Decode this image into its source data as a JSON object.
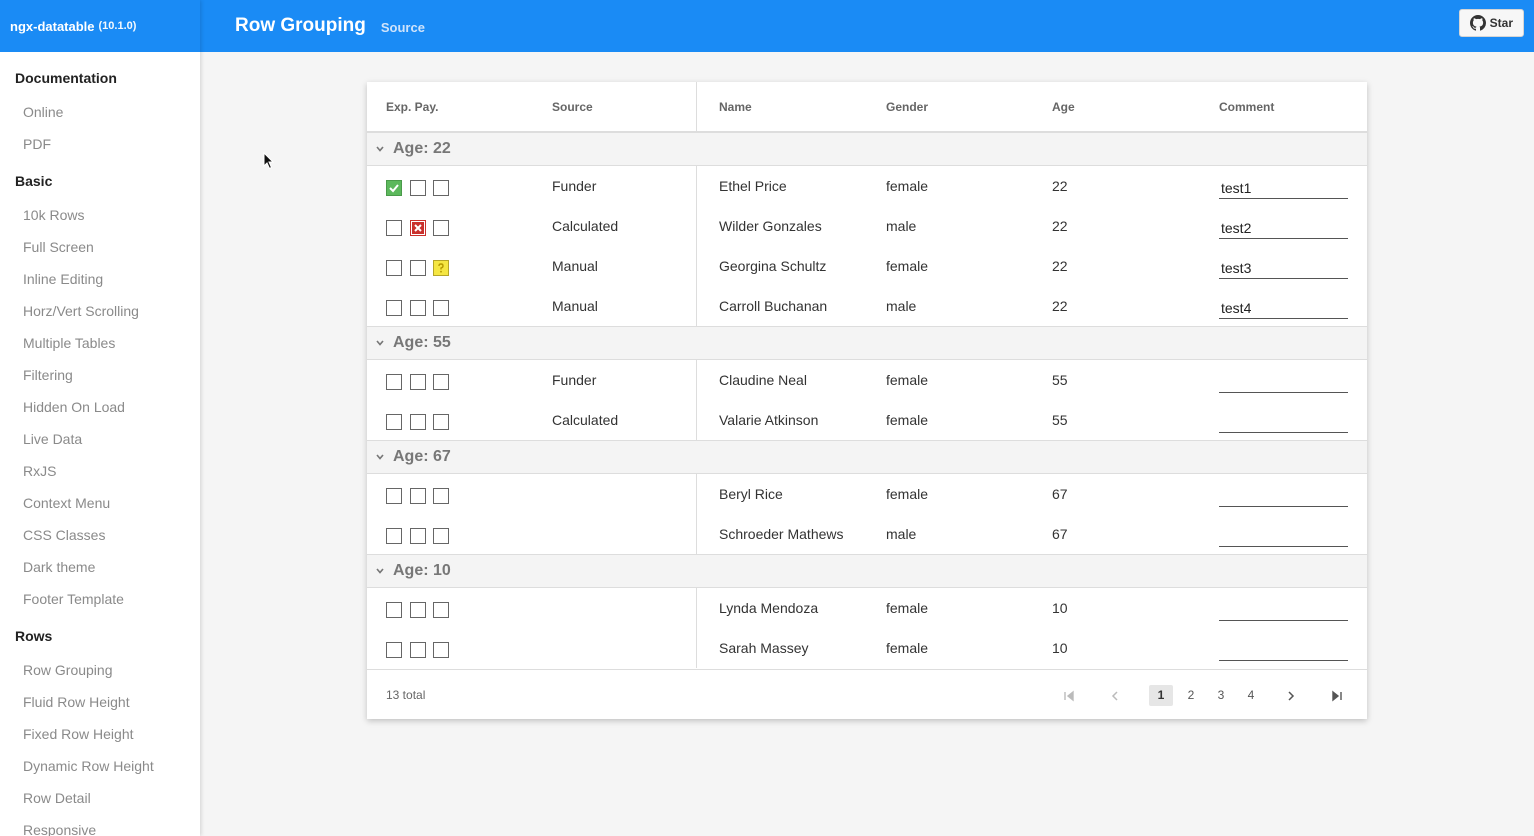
{
  "brand": {
    "name": "ngx-datatable",
    "version": "(10.1.0)"
  },
  "header": {
    "title": "Row Grouping",
    "source_label": "Source",
    "star_label": "Star"
  },
  "sidebar": {
    "sections": [
      {
        "title": "Documentation",
        "items": [
          "Online",
          "PDF"
        ]
      },
      {
        "title": "Basic",
        "items": [
          "10k Rows",
          "Full Screen",
          "Inline Editing",
          "Horz/Vert Scrolling",
          "Multiple Tables",
          "Filtering",
          "Hidden On Load",
          "Live Data",
          "RxJS",
          "Context Menu",
          "CSS Classes",
          "Dark theme",
          "Footer Template"
        ]
      },
      {
        "title": "Rows",
        "items": [
          "Row Grouping",
          "Fluid Row Height",
          "Fixed Row Height",
          "Dynamic Row Height",
          "Row Detail",
          "Responsive"
        ]
      }
    ]
  },
  "table": {
    "columns": [
      "Exp. Pay.",
      "Source",
      "Name",
      "Gender",
      "Age",
      "Comment"
    ],
    "groups": [
      {
        "title": "Age: 22",
        "rows": [
          {
            "status": "green",
            "source": "Funder",
            "name": "Ethel Price",
            "gender": "female",
            "age": "22",
            "comment": "test1"
          },
          {
            "status": "red",
            "source": "Calculated",
            "name": "Wilder Gonzales",
            "gender": "male",
            "age": "22",
            "comment": "test2"
          },
          {
            "status": "yellow",
            "source": "Manual",
            "name": "Georgina Schultz",
            "gender": "female",
            "age": "22",
            "comment": "test3"
          },
          {
            "status": "none",
            "source": "Manual",
            "name": "Carroll Buchanan",
            "gender": "male",
            "age": "22",
            "comment": "test4"
          }
        ]
      },
      {
        "title": "Age: 55",
        "rows": [
          {
            "status": "none",
            "source": "Funder",
            "name": "Claudine Neal",
            "gender": "female",
            "age": "55",
            "comment": ""
          },
          {
            "status": "none",
            "source": "Calculated",
            "name": "Valarie Atkinson",
            "gender": "female",
            "age": "55",
            "comment": ""
          }
        ]
      },
      {
        "title": "Age: 67",
        "rows": [
          {
            "status": "none",
            "source": "",
            "name": "Beryl Rice",
            "gender": "female",
            "age": "67",
            "comment": ""
          },
          {
            "status": "none",
            "source": "",
            "name": "Schroeder Mathews",
            "gender": "male",
            "age": "67",
            "comment": ""
          }
        ]
      },
      {
        "title": "Age: 10",
        "rows": [
          {
            "status": "none",
            "source": "",
            "name": "Lynda Mendoza",
            "gender": "female",
            "age": "10",
            "comment": ""
          },
          {
            "status": "none",
            "source": "",
            "name": "Sarah Massey",
            "gender": "female",
            "age": "10",
            "comment": ""
          }
        ]
      }
    ],
    "footer": {
      "total": "13 total",
      "pages": [
        "1",
        "2",
        "3",
        "4"
      ],
      "active_page": "1"
    }
  },
  "colors": {
    "primary": "#1a8bf5",
    "check_green": "#5cb85c",
    "check_red": "#c9302c",
    "check_yellow": "#f5e642"
  },
  "icons": [
    "github-icon",
    "chevron-down-icon",
    "first-page-icon",
    "prev-page-icon",
    "next-page-icon",
    "last-page-icon",
    "check-icon",
    "x-icon",
    "question-icon",
    "mouse-cursor-icon"
  ]
}
